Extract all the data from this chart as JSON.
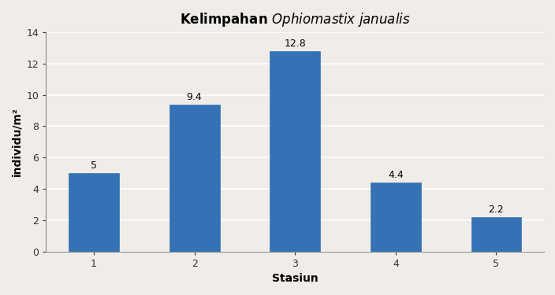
{
  "title_regular": "Kelimpahan ",
  "title_italic": "Ophiomastix janualis",
  "xlabel": "Stasiun",
  "ylabel": "individu/m²",
  "categories": [
    "1",
    "2",
    "3",
    "4",
    "5"
  ],
  "values": [
    5.0,
    9.4,
    12.8,
    4.4,
    2.2
  ],
  "bar_color": "#3472B5",
  "bar_edge_color": "#3472B5",
  "ylim": [
    0,
    14
  ],
  "yticks": [
    0,
    2,
    4,
    6,
    8,
    10,
    12,
    14
  ],
  "label_fontsize": 9,
  "title_fontsize": 12,
  "axis_label_fontsize": 10,
  "background_color": "#f0ede8",
  "grid_color": "#ffffff",
  "bar_width": 0.5
}
